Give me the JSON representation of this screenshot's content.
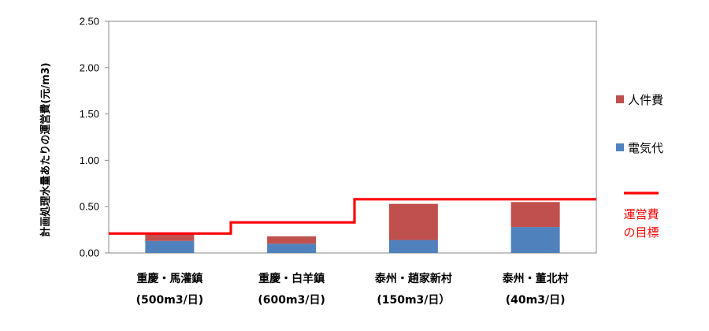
{
  "chart_data": {
    "type": "bar",
    "stacked": true,
    "ylabel": "計画処理水量あたりの運営費(元/m3)",
    "ylim": [
      0,
      2.5
    ],
    "yticks": [
      "0.00",
      "0.50",
      "1.00",
      "1.50",
      "2.00",
      "2.50"
    ],
    "grid": false,
    "legend_position": "right",
    "categories": [
      [
        "重慶・馬灌鎮",
        "(500m3/日)"
      ],
      [
        "重慶・白羊鎮",
        "(600m3/日)"
      ],
      [
        "泰州・趙家新村",
        "(150m3/日）"
      ],
      [
        "泰州・董北村",
        "(40m3/日)"
      ]
    ],
    "series": [
      {
        "name": "電気代",
        "color": "#4f81bd",
        "values": [
          0.13,
          0.1,
          0.14,
          0.28
        ]
      },
      {
        "name": "人件費",
        "color": "#c0504d",
        "values": [
          0.07,
          0.08,
          0.39,
          0.27
        ]
      }
    ],
    "target": {
      "name": [
        "運営費",
        "の目標"
      ],
      "color": "#ff0000",
      "values": [
        0.21,
        0.33,
        0.58,
        0.58
      ]
    }
  }
}
